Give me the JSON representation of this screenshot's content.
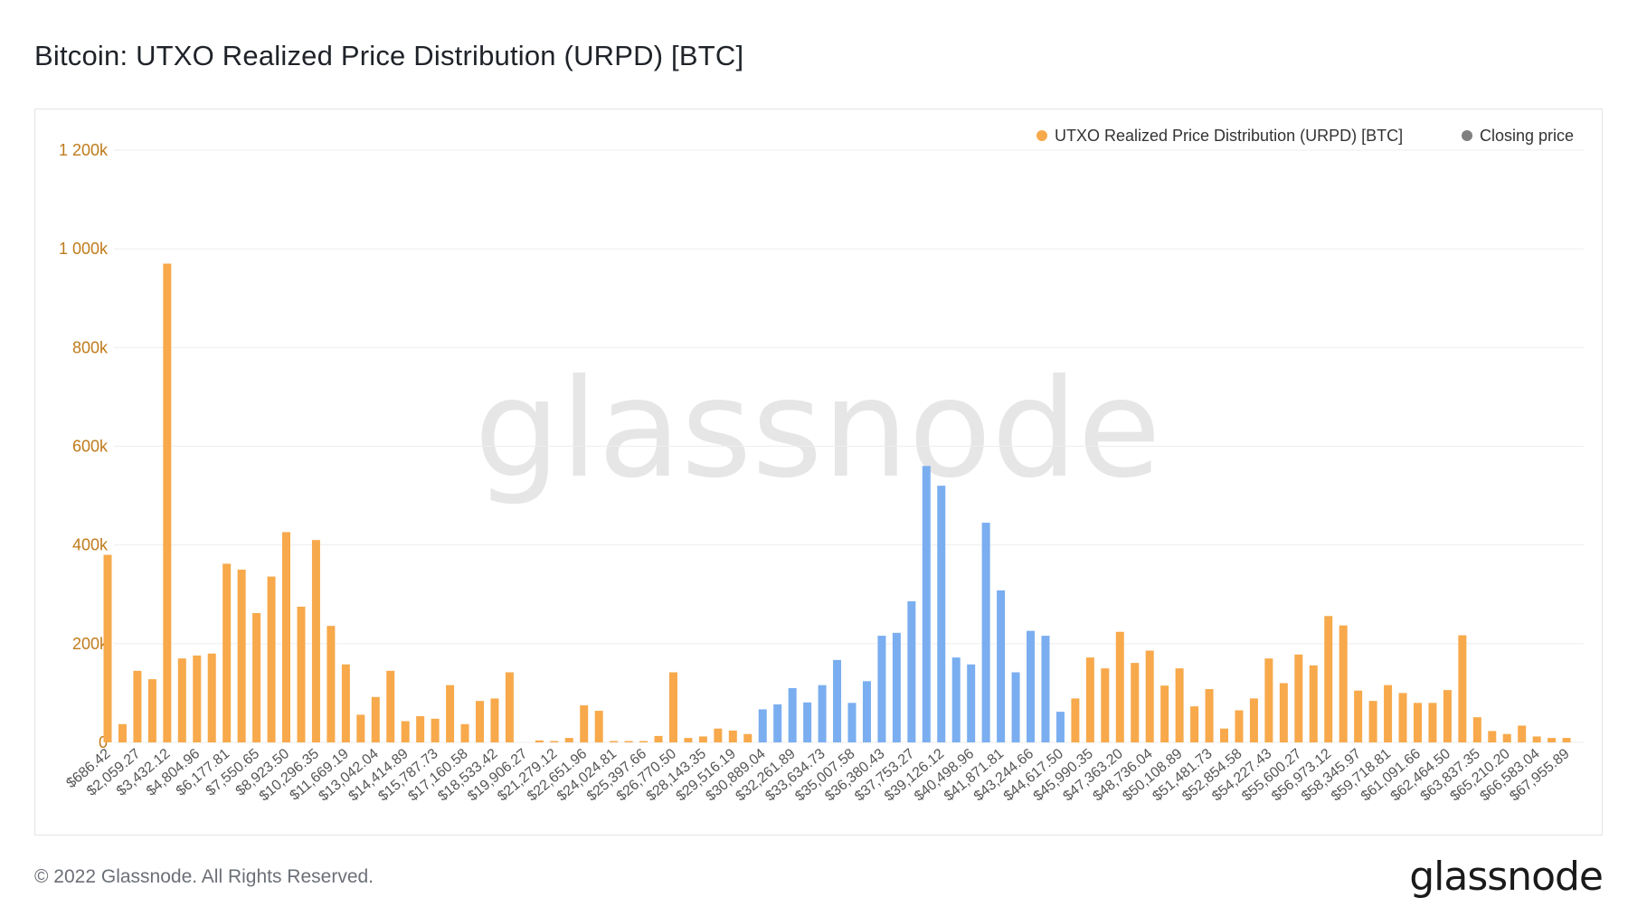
{
  "title": "Bitcoin: UTXO Realized Price Distribution (URPD) [BTC]",
  "footer": {
    "copyright": "© 2022 Glassnode. All Rights Reserved.",
    "logo": "glassnode"
  },
  "watermark": "glassnode",
  "colors": {
    "urpd": "#f7a94b",
    "closing": "#7aaef0",
    "closing_legend": "#7f7f7f",
    "y_tick": "#c07a1a"
  },
  "chart_data": {
    "type": "bar",
    "title": "Bitcoin: UTXO Realized Price Distribution (URPD) [BTC]",
    "legend": {
      "placement": "top-right",
      "items": [
        {
          "name": "UTXO Realized Price Distribution (URPD) [BTC]",
          "color": "#f7a94b"
        },
        {
          "name": "Closing price",
          "color": "#7f7f7f"
        }
      ]
    },
    "ylim": [
      0,
      1200000
    ],
    "y_ticks": [
      {
        "value": 0,
        "label": "0"
      },
      {
        "value": 200000,
        "label": "200k"
      },
      {
        "value": 400000,
        "label": "400k"
      },
      {
        "value": 600000,
        "label": "600k"
      },
      {
        "value": 800000,
        "label": "800k"
      },
      {
        "value": 1000000,
        "label": "1 000k"
      },
      {
        "value": 1200000,
        "label": "1 200k"
      }
    ],
    "x_tick_labels": [
      "$686.42",
      "$2,059.27",
      "$3,432.12",
      "$4,804.96",
      "$6,177.81",
      "$7,550.65",
      "$8,923.50",
      "$10,296.35",
      "$11,669.19",
      "$13,042.04",
      "$14,414.89",
      "$15,787.73",
      "$17,160.58",
      "$18,533.42",
      "$19,906.27",
      "$21,279.12",
      "$22,651.96",
      "$24,024.81",
      "$25,397.66",
      "$26,770.50",
      "$28,143.35",
      "$29,516.19",
      "$30,889.04",
      "$32,261.89",
      "$33,634.73",
      "$35,007.58",
      "$36,380.43",
      "$37,753.27",
      "$39,126.12",
      "$40,498.96",
      "$41,871.81",
      "$43,244.66",
      "$44,617.50",
      "$45,990.35",
      "$47,363.20",
      "$48,736.04",
      "$50,108.89",
      "$51,481.73",
      "$52,854.58",
      "$54,227.43",
      "$55,600.27",
      "$56,973.12",
      "$58,345.97",
      "$59,718.81",
      "$61,091.66",
      "$62,464.50",
      "$63,837.35",
      "$65,210.20",
      "$66,583.04",
      "$67,955.89"
    ],
    "grid": true,
    "highlight_range": {
      "label": "Closing price",
      "from_index": 44,
      "to_index": 64,
      "color": "#7aaef0"
    },
    "values": [
      380000,
      37000,
      145000,
      128000,
      970000,
      170000,
      176000,
      180000,
      362000,
      350000,
      262000,
      336000,
      426000,
      275000,
      410000,
      236000,
      158000,
      56000,
      92000,
      145000,
      43000,
      53000,
      48000,
      116000,
      37000,
      84000,
      89000,
      142000,
      0,
      4000,
      1000,
      9000,
      75000,
      64000,
      1000,
      1000,
      1000,
      13000,
      142000,
      9000,
      12000,
      28000,
      24000,
      17000,
      67000,
      77000,
      110000,
      81000,
      116000,
      167000,
      80000,
      124000,
      216000,
      222000,
      286000,
      560000,
      520000,
      172000,
      158000,
      445000,
      308000,
      142000,
      226000,
      216000,
      62000,
      89000,
      172000,
      150000,
      224000,
      161000,
      186000,
      115000,
      150000,
      73000,
      108000,
      28000,
      65000,
      89000,
      170000,
      120000,
      178000,
      156000,
      256000,
      237000,
      105000,
      84000,
      116000,
      100000,
      80000,
      80000,
      106000,
      217000,
      51000,
      23000,
      17000,
      34000,
      12000,
      9000,
      9000
    ]
  }
}
